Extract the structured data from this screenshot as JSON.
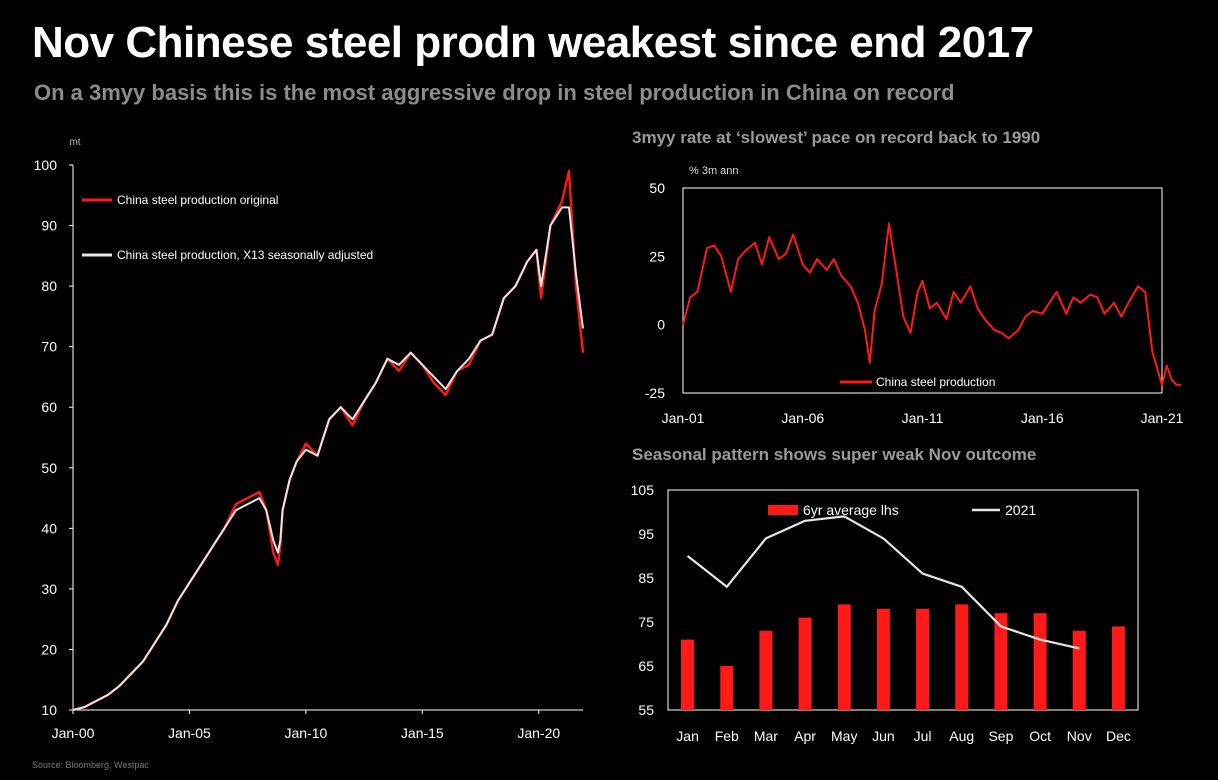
{
  "header": {
    "title": "Nov Chinese steel prodn weakest since end 2017",
    "subtitle": "On a 3myy basis this is the most aggressive drop in steel production in China on record"
  },
  "source": "Source: Bloomberg, Westpac",
  "colors": {
    "red": "#ff1a1a",
    "white": "#e6e6e6",
    "axis": "#ffffff",
    "subtitle": "#8c8c8c"
  },
  "chart_data": [
    {
      "id": "steel-level",
      "type": "line",
      "title": "",
      "ylabel": "mt",
      "ylim": [
        10,
        100
      ],
      "yticks": [
        10,
        20,
        30,
        40,
        50,
        60,
        70,
        80,
        90,
        100
      ],
      "x_range": [
        2000,
        2021.9
      ],
      "xticks": [
        {
          "x": 2000,
          "label": "Jan-00"
        },
        {
          "x": 2005,
          "label": "Jan-05"
        },
        {
          "x": 2010,
          "label": "Jan-10"
        },
        {
          "x": 2015,
          "label": "Jan-15"
        },
        {
          "x": 2020,
          "label": "Jan-20"
        }
      ],
      "legend": "top-left",
      "series": [
        {
          "name": "China steel production original",
          "x": [
            2000,
            2000.5,
            2001,
            2001.5,
            2002,
            2002.5,
            2003,
            2003.5,
            2004,
            2004.5,
            2005,
            2005.5,
            2006,
            2006.5,
            2007,
            2007.5,
            2008,
            2008.3,
            2008.6,
            2008.8,
            2008.9,
            2009,
            2009.3,
            2009.6,
            2010,
            2010.5,
            2011,
            2011.5,
            2012,
            2012.5,
            2013,
            2013.5,
            2014,
            2014.5,
            2015,
            2015.5,
            2016,
            2016.5,
            2017,
            2017.5,
            2018,
            2018.5,
            2019,
            2019.5,
            2019.9,
            2020.1,
            2020.5,
            2021,
            2021.3,
            2021.6,
            2021.9
          ],
          "values": [
            10,
            10.5,
            11.5,
            12.5,
            14,
            16,
            18,
            21,
            24,
            28,
            31,
            34,
            37,
            40,
            44,
            45,
            46,
            43,
            36,
            34,
            37,
            43,
            48,
            51,
            54,
            52,
            58,
            60,
            57,
            61,
            64,
            68,
            66,
            69,
            67,
            64,
            62,
            66,
            67,
            71,
            72,
            78,
            80,
            84,
            86,
            78,
            90,
            94,
            99,
            80,
            69
          ]
        },
        {
          "name": "China steel production, X13 seasonally adjusted",
          "x": [
            2000,
            2000.5,
            2001,
            2001.5,
            2002,
            2002.5,
            2003,
            2003.5,
            2004,
            2004.5,
            2005,
            2005.5,
            2006,
            2006.5,
            2007,
            2007.5,
            2008,
            2008.3,
            2008.6,
            2008.8,
            2008.9,
            2009,
            2009.3,
            2009.6,
            2010,
            2010.5,
            2011,
            2011.5,
            2012,
            2012.5,
            2013,
            2013.5,
            2014,
            2014.5,
            2015,
            2015.5,
            2016,
            2016.5,
            2017,
            2017.5,
            2018,
            2018.5,
            2019,
            2019.5,
            2019.9,
            2020.1,
            2020.5,
            2021,
            2021.3,
            2021.6,
            2021.9
          ],
          "values": [
            10,
            10.5,
            11.5,
            12.5,
            14,
            16,
            18,
            21,
            24,
            28,
            31,
            34,
            37,
            40,
            43,
            44,
            45,
            43,
            38,
            36,
            38,
            43,
            48,
            51,
            53,
            52,
            58,
            60,
            58,
            61,
            64,
            68,
            67,
            69,
            67,
            65,
            63,
            66,
            68,
            71,
            72,
            78,
            80,
            84,
            86,
            80,
            90,
            93,
            93,
            82,
            73
          ]
        }
      ]
    },
    {
      "id": "steel-3myy",
      "type": "line",
      "title": "3myy rate at ‘slowest’ pace on record back to 1990",
      "ylabel": "% 3m ann",
      "ylim": [
        -25,
        50
      ],
      "yticks": [
        -25,
        0,
        25,
        50
      ],
      "x_range": [
        2001,
        2021
      ],
      "xticks": [
        {
          "x": 2001,
          "label": "Jan-01"
        },
        {
          "x": 2006,
          "label": "Jan-06"
        },
        {
          "x": 2011,
          "label": "Jan-11"
        },
        {
          "x": 2016,
          "label": "Jan-16"
        },
        {
          "x": 2021,
          "label": "Jan-21"
        }
      ],
      "legend": "bottom-center",
      "series": [
        {
          "name": "China steel production",
          "x": [
            2001,
            2001.3,
            2001.6,
            2002,
            2002.3,
            2002.6,
            2003,
            2003.3,
            2003.6,
            2004,
            2004.3,
            2004.6,
            2005,
            2005.3,
            2005.6,
            2006,
            2006.3,
            2006.6,
            2007,
            2007.3,
            2007.6,
            2008,
            2008.3,
            2008.6,
            2008.8,
            2009,
            2009.3,
            2009.6,
            2009.9,
            2010.2,
            2010.5,
            2010.8,
            2011,
            2011.3,
            2011.6,
            2012,
            2012.3,
            2012.6,
            2013,
            2013.3,
            2013.6,
            2014,
            2014.3,
            2014.6,
            2015,
            2015.3,
            2015.6,
            2016,
            2016.3,
            2016.6,
            2017,
            2017.3,
            2017.6,
            2018,
            2018.3,
            2018.6,
            2019,
            2019.3,
            2019.6,
            2020,
            2020.3,
            2020.6,
            2021,
            2021.2,
            2021.4,
            2021.6,
            2021.8
          ],
          "values": [
            0,
            10,
            12,
            28,
            29,
            25,
            12,
            24,
            27,
            30,
            22,
            32,
            24,
            26,
            33,
            22,
            19,
            24,
            20,
            24,
            18,
            14,
            8,
            -2,
            -14,
            5,
            15,
            37,
            20,
            3,
            -3,
            12,
            16,
            6,
            8,
            2,
            12,
            8,
            14,
            6,
            2,
            -2,
            -3,
            -5,
            -2,
            3,
            5,
            4,
            8,
            12,
            4,
            10,
            8,
            11,
            10,
            4,
            8,
            3,
            8,
            14,
            12,
            -10,
            -22,
            -15,
            -20,
            -22,
            -22
          ]
        }
      ]
    },
    {
      "id": "seasonal-pattern",
      "type": "bar",
      "title": "Seasonal pattern shows super weak Nov outcome",
      "ylim": [
        55,
        105
      ],
      "yticks": [
        55,
        65,
        75,
        85,
        95,
        105
      ],
      "categories": [
        "Jan",
        "Feb",
        "Mar",
        "Apr",
        "May",
        "Jun",
        "Jul",
        "Aug",
        "Sep",
        "Oct",
        "Nov",
        "Dec"
      ],
      "legend": "top-center",
      "series": [
        {
          "name": "6yr average lhs",
          "kind": "bar",
          "values": [
            71,
            65,
            73,
            76,
            79,
            78,
            78,
            79,
            77,
            77,
            73,
            74
          ]
        },
        {
          "name": "2021",
          "kind": "line",
          "values": [
            90,
            83,
            94,
            98,
            99,
            94,
            86,
            83,
            74,
            71,
            69,
            null
          ]
        }
      ]
    }
  ]
}
